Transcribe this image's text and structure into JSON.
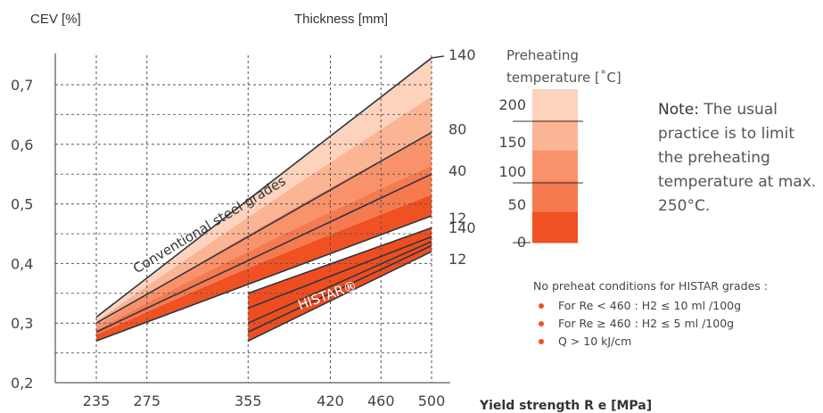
{
  "chart_data": {
    "type": "line",
    "ylabel": "CEV [%]",
    "xlabel": "Yield strength R e [MPa]",
    "series_group_label": "Thickness [mm]",
    "xlim": [
      235,
      500
    ],
    "ylim": [
      0.2,
      0.75
    ],
    "x_ticks": [
      "235",
      "275",
      "355",
      "420",
      "460",
      "500"
    ],
    "x_tick_values": [
      235,
      275,
      355,
      420,
      460,
      500
    ],
    "y_ticks": [
      "0,2",
      "0,3",
      "0,4",
      "0,5",
      "0,6",
      "0,7"
    ],
    "y_tick_values": [
      0.2,
      0.3,
      0.4,
      0.5,
      0.6,
      0.7
    ],
    "grid": true,
    "conventional": {
      "label": "Conventional steel grades",
      "x": [
        235,
        500
      ],
      "lines": [
        {
          "thickness": "140",
          "y": [
            0.31,
            0.745
          ]
        },
        {
          "thickness": "80",
          "y": [
            0.3,
            0.62
          ]
        },
        {
          "thickness": "40",
          "y": [
            0.285,
            0.55
          ]
        },
        {
          "thickness": "12",
          "y": [
            0.27,
            0.48
          ]
        }
      ]
    },
    "histar": {
      "label": "HISTAR®",
      "x": [
        355,
        500
      ],
      "lines": [
        {
          "thickness": "140",
          "y": [
            0.35,
            0.46
          ]
        },
        {
          "thickness": "",
          "y": [
            0.325,
            0.445
          ]
        },
        {
          "thickness": "",
          "y": [
            0.3,
            0.437
          ]
        },
        {
          "thickness": "",
          "y": [
            0.285,
            0.43
          ]
        },
        {
          "thickness": "12",
          "y": [
            0.27,
            0.42
          ]
        }
      ]
    },
    "preheat_legend": {
      "title_line1": "Preheating",
      "title_line2": "temperature [˚C]",
      "labels": [
        "200",
        "150",
        "100",
        "50",
        "0"
      ],
      "colors": [
        "#fdd3bd",
        "#fbb594",
        "#f9926b",
        "#f57a4f",
        "#f05123"
      ]
    }
  },
  "note": {
    "label": "Note:",
    "text": "The usual practice is to limit the preheating temperature at max. 250°C."
  },
  "conditions": {
    "title": "No preheat conditions for HISTAR grades :",
    "items": [
      "For Re < 460 : H2 ≤ 10 ml /100g",
      "For Re ≥ 460 : H2 ≤ 5 ml /100g",
      "Q > 10 kJ/cm"
    ]
  }
}
